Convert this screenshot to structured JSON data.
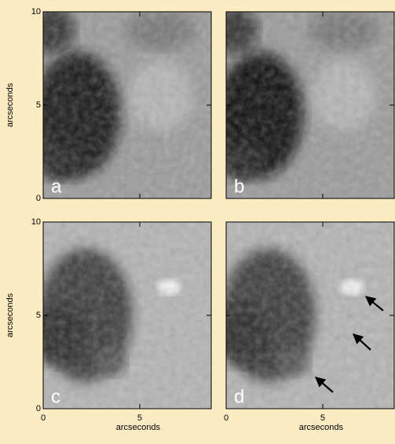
{
  "chart_data": [
    {
      "type": "image",
      "label": "a",
      "xlim": [
        0,
        8.7
      ],
      "ylim": [
        0,
        10
      ],
      "xticks": [
        0,
        5
      ],
      "yticks": [
        0,
        5,
        10
      ],
      "ylabel": "arcseconds"
    },
    {
      "type": "image",
      "label": "b",
      "xlim": [
        0,
        8.7
      ],
      "ylim": [
        0,
        10
      ],
      "xticks": [
        0,
        5
      ],
      "yticks": [
        0,
        5,
        10
      ]
    },
    {
      "type": "image",
      "label": "c",
      "xlim": [
        0,
        8.7
      ],
      "ylim": [
        0,
        10
      ],
      "xticks": [
        0,
        5
      ],
      "yticks": [
        0,
        5,
        10
      ],
      "xlabel": "arcseconds",
      "ylabel": "arcseconds"
    },
    {
      "type": "image",
      "label": "d",
      "xlim": [
        0,
        8.7
      ],
      "ylim": [
        0,
        10
      ],
      "xticks": [
        0,
        5
      ],
      "yticks": [
        0,
        5,
        10
      ],
      "xlabel": "arcseconds"
    }
  ]
}
